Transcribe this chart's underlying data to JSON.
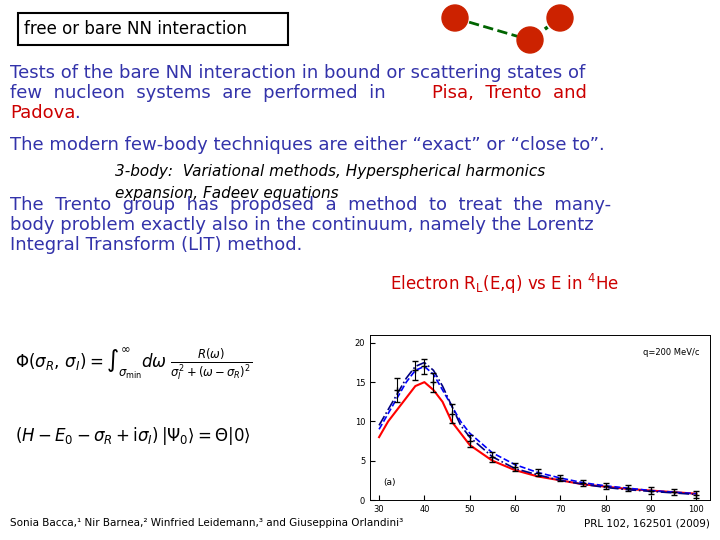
{
  "title_box_text": "free or bare NN interaction",
  "bg_color": "#FFFFFF",
  "blue": "#3333AA",
  "red": "#CC0000",
  "black": "#000000",
  "footer_left": "Sonia Bacca,¹ Nir Barnea,² Winfried Leidemann,³ and Giuseppina Orlandini³",
  "footer_right": "PRL 102, 162501 (2009)"
}
